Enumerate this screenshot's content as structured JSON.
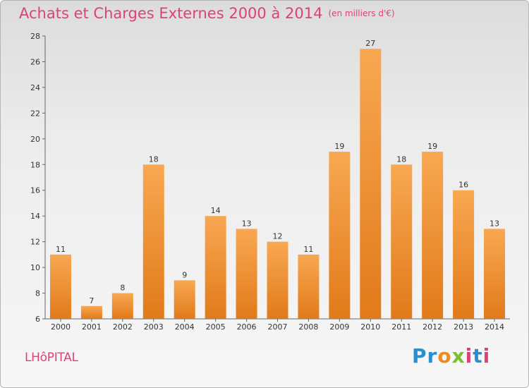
{
  "header": {
    "title": "Achats et Charges Externes 2000 à 2014",
    "subtitle": "(en milliers d'€)"
  },
  "footer": {
    "location": "LHôPITAL",
    "logo": {
      "letters": [
        {
          "text": "P",
          "color": "#2a8fd0"
        },
        {
          "text": "r",
          "color": "#2a8fd0"
        },
        {
          "text": "o",
          "color": "#f08a1c"
        },
        {
          "text": "x",
          "color": "#7bbf2a"
        },
        {
          "text": "i",
          "color": "#e0407a"
        },
        {
          "text": "t",
          "color": "#2a8fd0"
        },
        {
          "text": "i",
          "color": "#e0407a"
        }
      ]
    }
  },
  "colors": {
    "bar_light": "#f8a852",
    "bar_dark": "#e17a1a",
    "title": "#e0407a"
  },
  "chart_data": {
    "type": "bar",
    "title": "Achats et Charges Externes 2000 à 2014",
    "subtitle": "(en milliers d'€)",
    "categories": [
      "2000",
      "2001",
      "2002",
      "2003",
      "2004",
      "2005",
      "2006",
      "2007",
      "2008",
      "2009",
      "2010",
      "2011",
      "2012",
      "2013",
      "2014"
    ],
    "values": [
      11,
      7,
      8,
      18,
      9,
      14,
      13,
      12,
      11,
      19,
      27,
      18,
      19,
      16,
      13
    ],
    "ylim": [
      6,
      28
    ],
    "yticks": [
      6,
      8,
      10,
      12,
      14,
      16,
      18,
      20,
      22,
      24,
      26,
      28
    ],
    "grid": false,
    "xlabel": "",
    "ylabel": ""
  }
}
